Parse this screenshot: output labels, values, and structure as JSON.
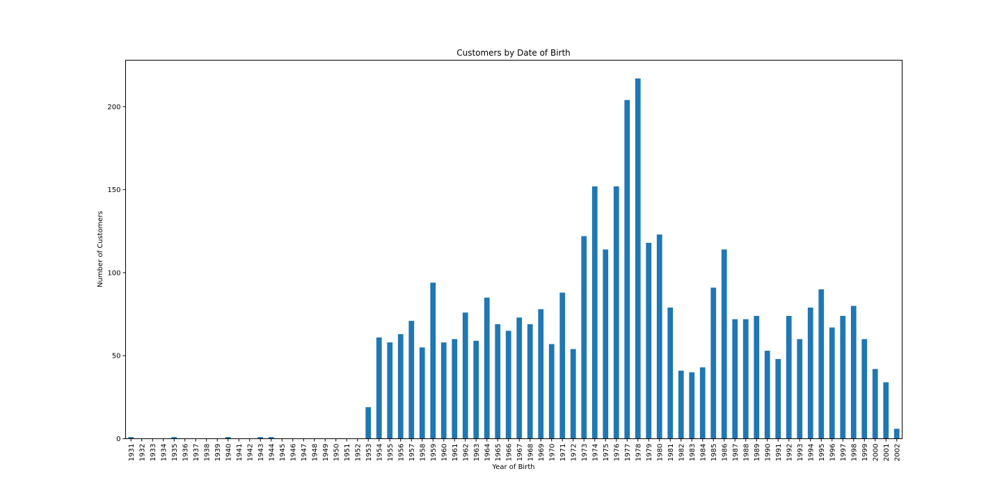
{
  "chart_data": {
    "type": "bar",
    "title": "Customers by Date of Birth",
    "xlabel": "Year of Birth",
    "ylabel": "Number of Customers",
    "ylim": [
      0,
      228
    ],
    "yticks": [
      0,
      50,
      100,
      150,
      200
    ],
    "grid": false,
    "legend": "none",
    "bar_color": "#1f77b4",
    "categories": [
      "1931",
      "1932",
      "1933",
      "1934",
      "1935",
      "1936",
      "1937",
      "1938",
      "1939",
      "1940",
      "1941",
      "1942",
      "1943",
      "1944",
      "1945",
      "1946",
      "1947",
      "1948",
      "1949",
      "1950",
      "1951",
      "1952",
      "1953",
      "1954",
      "1955",
      "1956",
      "1957",
      "1958",
      "1959",
      "1960",
      "1961",
      "1962",
      "1963",
      "1964",
      "1965",
      "1966",
      "1967",
      "1968",
      "1969",
      "1970",
      "1971",
      "1972",
      "1973",
      "1974",
      "1975",
      "1976",
      "1977",
      "1978",
      "1979",
      "1980",
      "1981",
      "1982",
      "1983",
      "1984",
      "1985",
      "1986",
      "1987",
      "1988",
      "1989",
      "1990",
      "1991",
      "1992",
      "1993",
      "1994",
      "1995",
      "1996",
      "1997",
      "1998",
      "1999",
      "2000",
      "2001",
      "2002"
    ],
    "values": [
      1,
      0,
      0,
      0,
      1,
      0,
      0,
      0,
      0,
      1,
      0,
      0,
      1,
      1,
      0,
      0,
      0,
      0,
      0,
      0,
      0,
      0,
      19,
      61,
      58,
      63,
      71,
      55,
      94,
      58,
      60,
      76,
      59,
      85,
      69,
      65,
      73,
      69,
      78,
      57,
      88,
      54,
      122,
      152,
      114,
      152,
      204,
      217,
      118,
      123,
      79,
      41,
      40,
      43,
      91,
      114,
      72,
      72,
      74,
      53,
      48,
      74,
      60,
      79,
      90,
      67,
      74,
      80,
      60,
      42,
      34,
      6
    ]
  }
}
